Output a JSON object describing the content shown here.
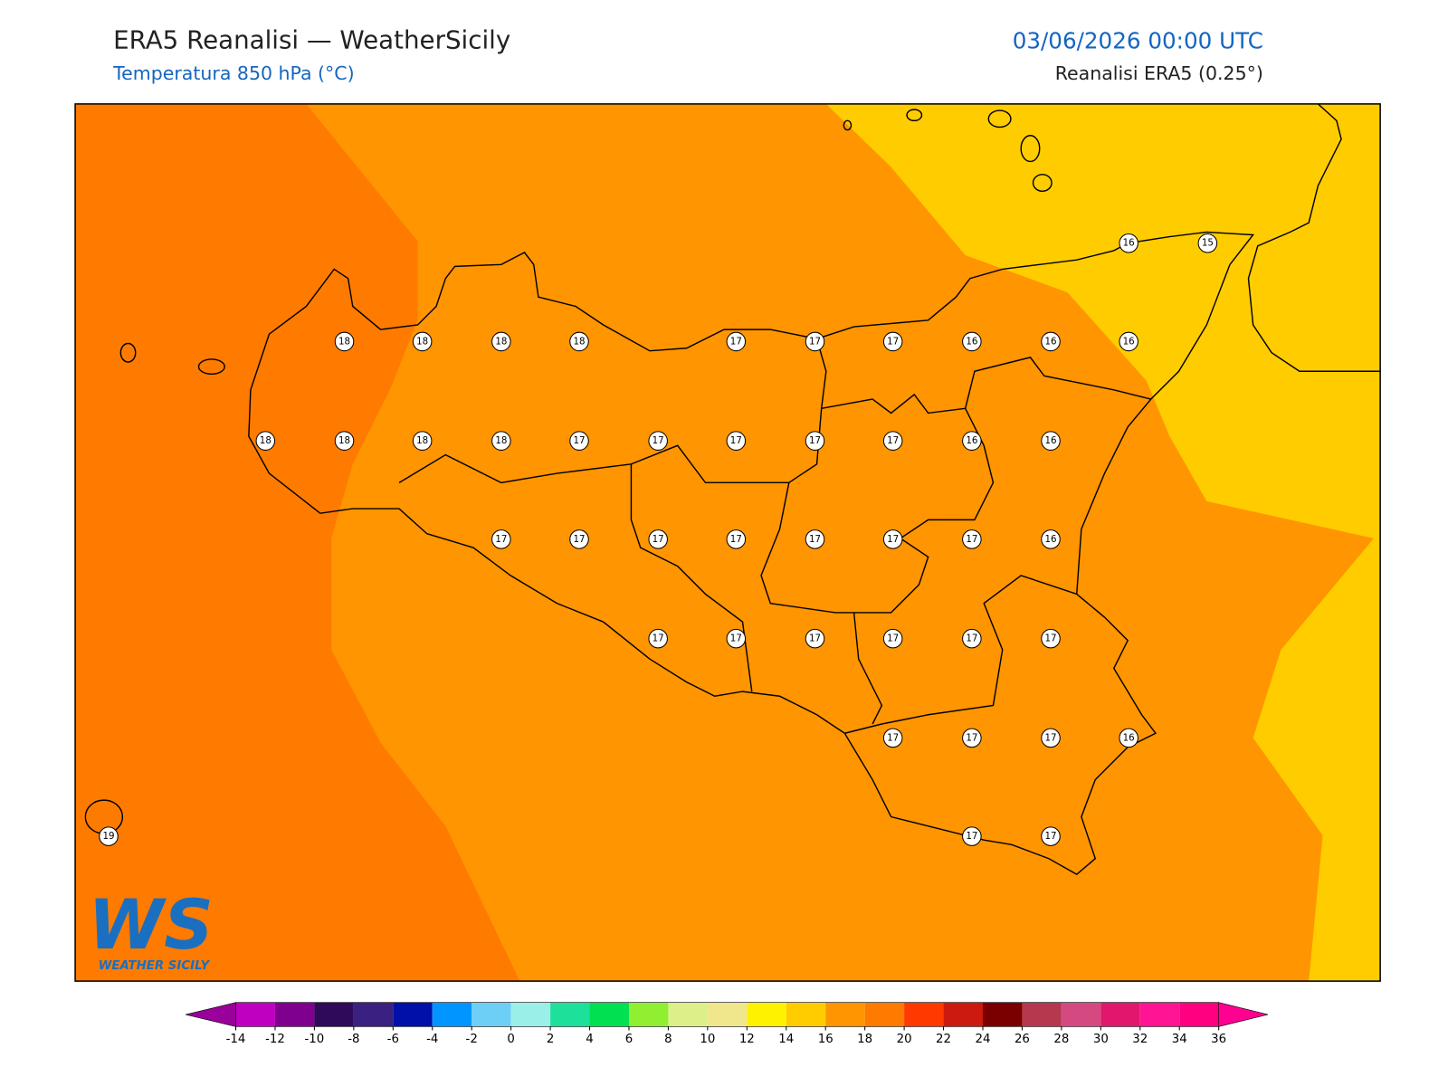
{
  "header": {
    "title": "ERA5 Reanalisi — WeatherSicily",
    "subtitle": "Temperatura 850 hPa (°C)",
    "date": "03/06/2026 00:00 UTC",
    "source": "Reanalisi ERA5 (0.25°)"
  },
  "map": {
    "stations": [
      16,
      15,
      18,
      18,
      18,
      18,
      17,
      17,
      17,
      16,
      16,
      16,
      18,
      18,
      18,
      18,
      17,
      17,
      17,
      17,
      17,
      16,
      16,
      17,
      17,
      17,
      17,
      17,
      17,
      17,
      16,
      17,
      17,
      17,
      17,
      17,
      17,
      17,
      17,
      17,
      16,
      19,
      17,
      17
    ]
  },
  "colorbar": {
    "ticks": [
      -14,
      -12,
      -10,
      -8,
      -6,
      -4,
      -2,
      0,
      2,
      4,
      6,
      8,
      10,
      12,
      14,
      16,
      18,
      20,
      22,
      24,
      26,
      28,
      30,
      32,
      34,
      36
    ],
    "colors": [
      "#c000c0",
      "#7f008f",
      "#2f0a5a",
      "#3a2080",
      "#0010a8",
      "#0095ff",
      "#6dcff6",
      "#9af0e8",
      "#1de09a",
      "#00e050",
      "#8fef30",
      "#dcef88",
      "#f0e68c",
      "#fff200",
      "#ffcc00",
      "#ff9500",
      "#ff7b00",
      "#ff3a00",
      "#cc1a10",
      "#7a0000",
      "#b5384e",
      "#d44a80",
      "#e0176c",
      "#ff1493",
      "#ff0080"
    ],
    "under_color": "#9a009a",
    "over_color": "#ff0090"
  },
  "logo": {
    "text": "WS",
    "caption": "WEATHER SICILY"
  }
}
